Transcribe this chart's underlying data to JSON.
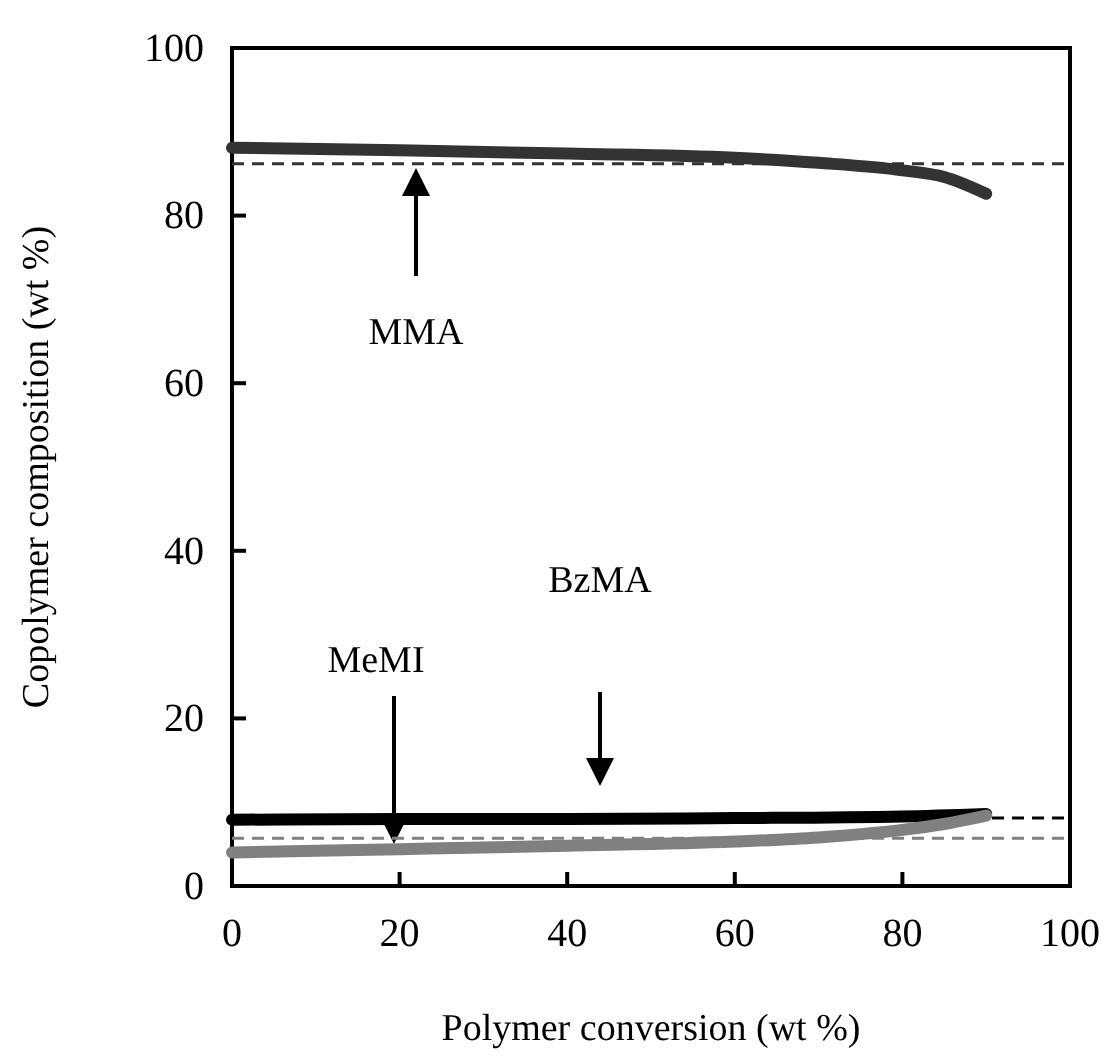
{
  "chart_data": {
    "type": "line",
    "xlabel": "Polymer conversion (wt %)",
    "ylabel": "Copolymer composition (wt %)",
    "xlim": [
      0,
      100
    ],
    "ylim": [
      0,
      100
    ],
    "xticks": [
      0,
      20,
      40,
      60,
      80,
      100
    ],
    "yticks": [
      0,
      20,
      40,
      60,
      80,
      100
    ],
    "grid": false,
    "marker": "none",
    "line_style": "solid",
    "series": [
      {
        "color": "#333333",
        "x": [
          0,
          20,
          40,
          60,
          70,
          80,
          85,
          90
        ],
        "values": [
          88.1,
          87.8,
          87.4,
          86.9,
          86.3,
          85.4,
          84.6,
          82.6
        ]
      },
      {
        "color": "#000000",
        "x": [
          0,
          20,
          40,
          60,
          80,
          90
        ],
        "values": [
          7.9,
          8.0,
          8.0,
          8.1,
          8.3,
          8.6
        ]
      },
      {
        "color": "#808080",
        "x": [
          0,
          20,
          40,
          60,
          70,
          80,
          85,
          90
        ],
        "values": [
          4.0,
          4.4,
          4.8,
          5.3,
          5.8,
          6.7,
          7.4,
          8.4
        ]
      }
    ],
    "ref_lines": [
      {
        "axis": "y",
        "value": 86.2,
        "color": "#333333",
        "line_style": "dashed"
      },
      {
        "axis": "y",
        "value": 8.1,
        "color": "#000000",
        "line_style": "dashed"
      },
      {
        "axis": "y",
        "value": 5.7,
        "color": "#808080",
        "line_style": "dashed"
      }
    ],
    "annotations": [
      "MMA",
      "MeMI",
      "BzMA"
    ]
  }
}
